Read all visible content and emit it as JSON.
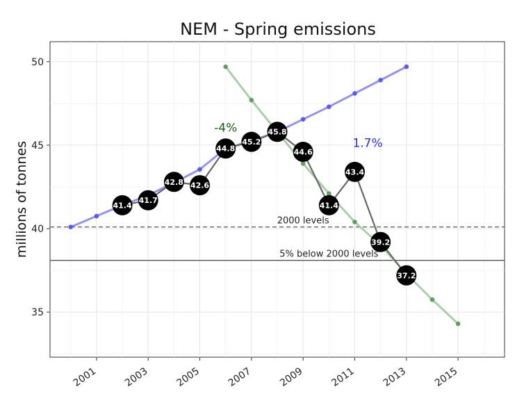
{
  "chart_data": {
    "type": "line",
    "title": "NEM -  Spring emissions",
    "ylabel": "millions of tonnes",
    "xlabel": "",
    "xlim": [
      1999.2,
      2016.8
    ],
    "ylim": [
      32.3,
      51.2
    ],
    "x_ticks": [
      2001,
      2003,
      2005,
      2007,
      2009,
      2011,
      2013,
      2015
    ],
    "y_ticks": [
      35,
      40,
      45,
      50
    ],
    "grid": true,
    "colors": {
      "actual": "#000000",
      "actual_line": "#666666",
      "blue_trend": "#7f7fef",
      "blue_point": "#5a5aee",
      "green_trend": "#9bc49b",
      "green_point": "#5f9f5f",
      "reference": "#555555"
    },
    "series": [
      {
        "name": "actual",
        "x": [
          2002,
          2003,
          2004,
          2005,
          2006,
          2007,
          2008,
          2009,
          2010,
          2011,
          2012,
          2013
        ],
        "values": [
          41.4,
          41.7,
          42.8,
          42.6,
          44.8,
          45.2,
          45.8,
          44.6,
          41.4,
          43.4,
          39.2,
          37.2
        ],
        "labels": [
          "41.4",
          "41.7",
          "42.8",
          "42.6",
          "44.8",
          "45.2",
          "45.8",
          "44.6",
          "41.4",
          "43.4",
          "39.2",
          "37.2"
        ]
      },
      {
        "name": "blue-trend",
        "x": [
          2000,
          2001,
          2002,
          2003,
          2004,
          2005,
          2006,
          2007,
          2008,
          2009,
          2010,
          2011,
          2012,
          2013
        ],
        "values": [
          40.1,
          40.75,
          41.4,
          42.0,
          42.75,
          43.55,
          44.8,
          45.25,
          45.8,
          46.55,
          47.3,
          48.1,
          48.9,
          49.7
        ]
      },
      {
        "name": "green-trend",
        "x": [
          2006,
          2007,
          2008,
          2009,
          2010,
          2011,
          2012,
          2013,
          2014,
          2015
        ],
        "values": [
          49.7,
          47.7,
          45.8,
          43.9,
          42.1,
          40.4,
          39.0,
          37.3,
          35.75,
          34.3
        ]
      }
    ],
    "reference_lines": [
      {
        "y": 40.1,
        "label": "2000 levels",
        "style": "dashed"
      },
      {
        "y": 38.1,
        "label": "5% below 2000 levels",
        "style": "solid"
      }
    ],
    "annotations": [
      {
        "text": "-4%",
        "x": 2006.0,
        "y": 45.8,
        "color": "#1a5c1a"
      },
      {
        "text": "1.7%",
        "x": 2011.5,
        "y": 44.9,
        "color": "#2a2ae0"
      }
    ]
  }
}
